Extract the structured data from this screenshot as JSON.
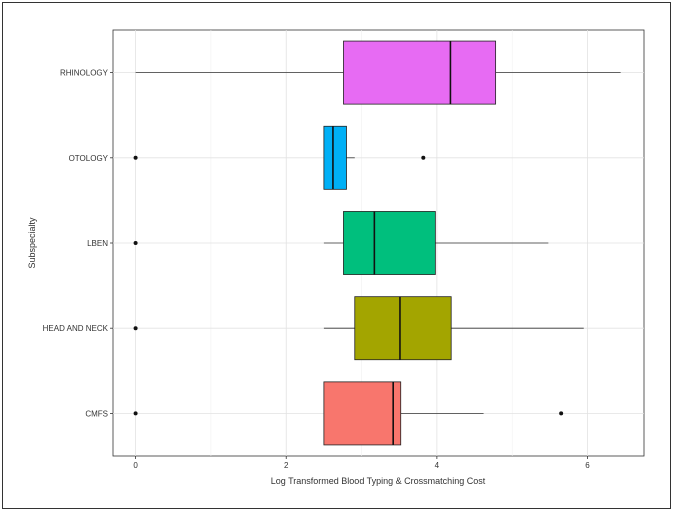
{
  "chart_data": {
    "type": "boxplot",
    "orientation": "horizontal",
    "xlabel": "Log Transformed Blood Typing & Crossmatching Cost",
    "ylabel": "Subspecialty",
    "xlim": [
      -0.3,
      6.75
    ],
    "x_ticks": [
      0,
      2,
      4,
      6
    ],
    "grid": true,
    "legend": "none",
    "categories": [
      "CMFS",
      "HEAD AND NECK",
      "LBEN",
      "OTOLOGY",
      "RHINOLOGY"
    ],
    "boxes": [
      {
        "category": "CMFS",
        "color": "#F8766D",
        "whisker_low": 2.5,
        "q1": 2.5,
        "median": 3.42,
        "q3": 3.52,
        "whisker_high": 4.62,
        "outliers": [
          0,
          5.65
        ]
      },
      {
        "category": "HEAD AND NECK",
        "color": "#A3A500",
        "whisker_low": 2.5,
        "q1": 2.91,
        "median": 3.51,
        "q3": 4.19,
        "whisker_high": 5.95,
        "outliers": [
          0
        ]
      },
      {
        "category": "LBEN",
        "color": "#00BF7D",
        "whisker_low": 2.5,
        "q1": 2.76,
        "median": 3.17,
        "q3": 3.98,
        "whisker_high": 5.48,
        "outliers": [
          0
        ]
      },
      {
        "category": "OTOLOGY",
        "color": "#00B0F6",
        "whisker_low": 2.5,
        "q1": 2.5,
        "median": 2.62,
        "q3": 2.8,
        "whisker_high": 2.91,
        "outliers": [
          0,
          3.82
        ]
      },
      {
        "category": "RHINOLOGY",
        "color": "#E76BF3",
        "whisker_low": 0,
        "q1": 2.76,
        "median": 4.18,
        "q3": 4.78,
        "whisker_high": 6.44,
        "outliers": []
      }
    ]
  }
}
